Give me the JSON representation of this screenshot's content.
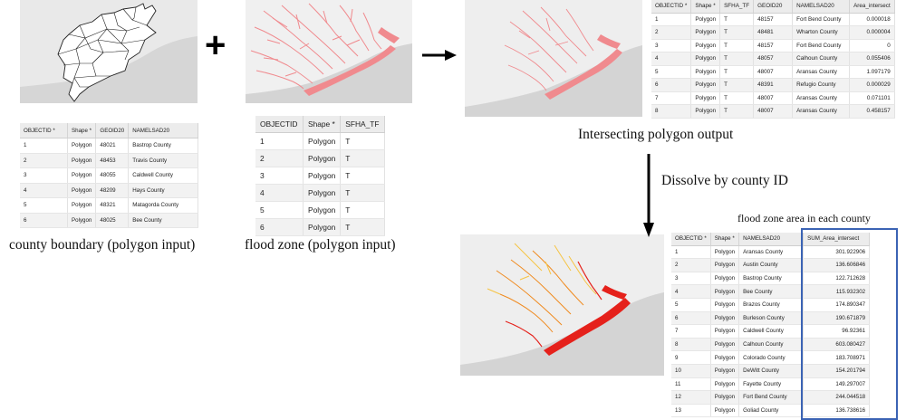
{
  "maps": {
    "county_map": {
      "fill": "#e9e9e9",
      "water": "#d4d4d4"
    },
    "flood_map": {
      "fill": "#f0f0f0",
      "flood_color": "#f08a8e"
    },
    "intersect_map": {
      "fill": "#eeeeee",
      "flood_color": "#f08a8e"
    },
    "dissolve_map": {
      "fill": "#eeeeee",
      "colors": [
        "#e5211b",
        "#f08a1e",
        "#f6c443"
      ]
    }
  },
  "symbols": {
    "plus": "+"
  },
  "county_table": {
    "columns": [
      "OBJECTID *",
      "Shape *",
      "GEOID20",
      "NAMELSAD20"
    ],
    "rows": [
      [
        "1",
        "Polygon",
        "48021",
        "Bastrop County"
      ],
      [
        "2",
        "Polygon",
        "48453",
        "Travis County"
      ],
      [
        "3",
        "Polygon",
        "48055",
        "Caldwell County"
      ],
      [
        "4",
        "Polygon",
        "48209",
        "Hays County"
      ],
      [
        "5",
        "Polygon",
        "48321",
        "Matagorda County"
      ],
      [
        "6",
        "Polygon",
        "48025",
        "Bee County"
      ]
    ]
  },
  "flood_table": {
    "columns": [
      "OBJECTID",
      "Shape *",
      "SFHA_TF"
    ],
    "rows": [
      [
        "1",
        "Polygon",
        "T"
      ],
      [
        "2",
        "Polygon",
        "T"
      ],
      [
        "3",
        "Polygon",
        "T"
      ],
      [
        "4",
        "Polygon",
        "T"
      ],
      [
        "5",
        "Polygon",
        "T"
      ],
      [
        "6",
        "Polygon",
        "T"
      ]
    ]
  },
  "intersect_table": {
    "columns": [
      "OBJECTID *",
      "Shape *",
      "SFHA_TF",
      "GEOID20",
      "NAMELSAD20",
      "Area_intersect"
    ],
    "rows": [
      [
        "1",
        "Polygon",
        "T",
        "48157",
        "Fort Bend County",
        "0.000018"
      ],
      [
        "2",
        "Polygon",
        "T",
        "48481",
        "Wharton County",
        "0.000004"
      ],
      [
        "3",
        "Polygon",
        "T",
        "48157",
        "Fort Bend County",
        "0"
      ],
      [
        "4",
        "Polygon",
        "T",
        "48057",
        "Calhoun County",
        "0.055406"
      ],
      [
        "5",
        "Polygon",
        "T",
        "48007",
        "Aransas County",
        "1.097179"
      ],
      [
        "6",
        "Polygon",
        "T",
        "48391",
        "Refugio County",
        "0.000029"
      ],
      [
        "7",
        "Polygon",
        "T",
        "48007",
        "Aransas County",
        "0.071101"
      ],
      [
        "8",
        "Polygon",
        "T",
        "48007",
        "Aransas County",
        "0.458157"
      ]
    ]
  },
  "dissolve_table": {
    "columns": [
      "OBJECTID *",
      "Shape *",
      "NAMELSAD20",
      "SUM_Area_intersect"
    ],
    "rows": [
      [
        "1",
        "Polygon",
        "Aransas County",
        "301.922906"
      ],
      [
        "2",
        "Polygon",
        "Austin County",
        "136.606846"
      ],
      [
        "3",
        "Polygon",
        "Bastrop County",
        "122.712628"
      ],
      [
        "4",
        "Polygon",
        "Bee County",
        "115.932302"
      ],
      [
        "5",
        "Polygon",
        "Brazos County",
        "174.890347"
      ],
      [
        "6",
        "Polygon",
        "Burleson County",
        "190.671879"
      ],
      [
        "7",
        "Polygon",
        "Caldwell County",
        "96.92361"
      ],
      [
        "8",
        "Polygon",
        "Calhoun County",
        "603.080427"
      ],
      [
        "9",
        "Polygon",
        "Colorado County",
        "183.708971"
      ],
      [
        "10",
        "Polygon",
        "DeWitt County",
        "154.201794"
      ],
      [
        "11",
        "Polygon",
        "Fayette County",
        "149.297007"
      ],
      [
        "12",
        "Polygon",
        "Fort Bend County",
        "244.044518"
      ],
      [
        "13",
        "Polygon",
        "Goliad County",
        "136.738616"
      ]
    ]
  },
  "captions": {
    "county": "county boundary (polygon input)",
    "flood": "flood zone (polygon input)",
    "intersect": "Intersecting polygon output",
    "dissolve": "Dissolve by county ID",
    "area": "flood zone area in each county"
  }
}
